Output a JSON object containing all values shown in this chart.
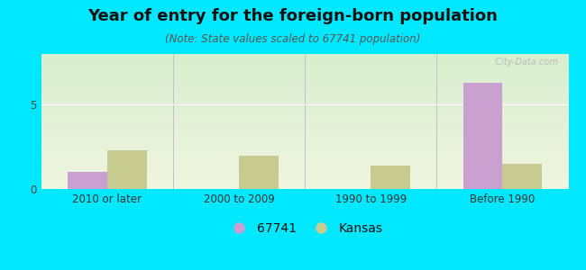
{
  "title": "Year of entry for the foreign-born population",
  "subtitle": "(Note: State values scaled to 67741 population)",
  "categories": [
    "2010 or later",
    "2000 to 2009",
    "1990 to 1999",
    "Before 1990"
  ],
  "values_67741": [
    1.0,
    0,
    0,
    6.3
  ],
  "values_kansas": [
    2.3,
    2.0,
    1.4,
    1.5
  ],
  "color_67741": "#c9a0d0",
  "color_kansas": "#c8cb90",
  "background_outer": "#00e8ff",
  "background_plot_top": "#d8eecf",
  "background_plot_bottom": "#f0f5e0",
  "ylim": [
    0,
    8
  ],
  "yticks": [
    0,
    5
  ],
  "bar_width": 0.3,
  "title_fontsize": 13,
  "subtitle_fontsize": 8.5,
  "legend_fontsize": 10,
  "tick_fontsize": 8.5,
  "watermark_text": "  City-Data.com"
}
